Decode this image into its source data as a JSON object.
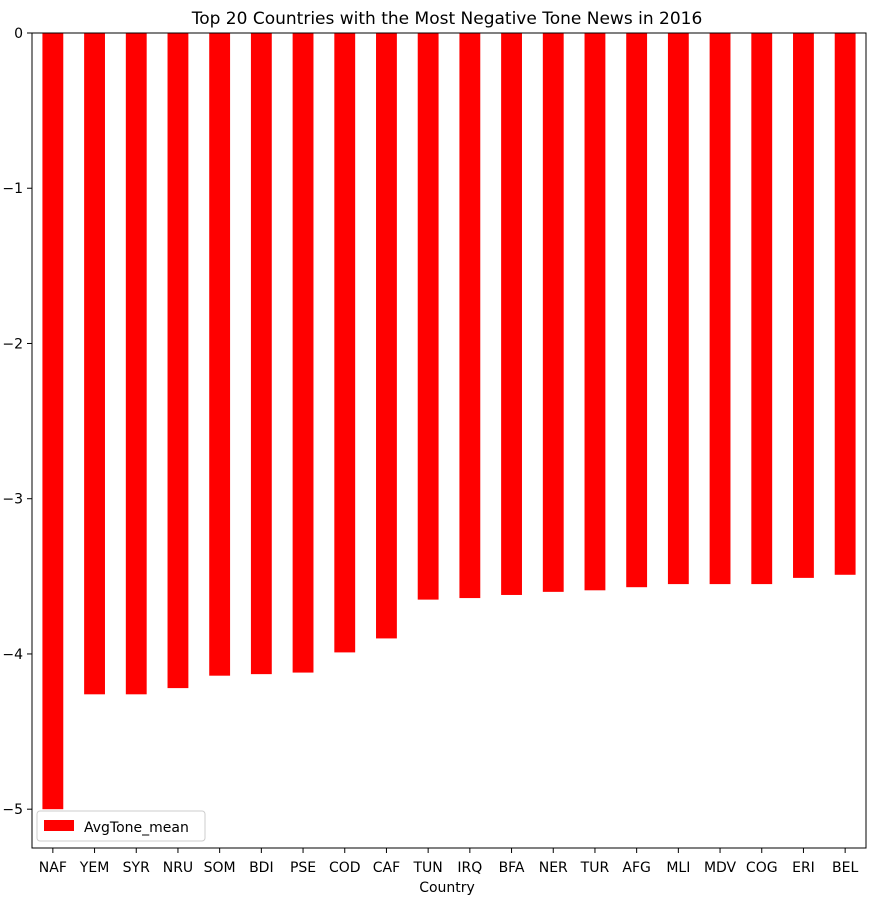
{
  "chart_data": {
    "type": "bar",
    "title": "Top 20 Countries with the Most Negative Tone News in 2016",
    "xlabel": "Country",
    "ylabel": "",
    "categories": [
      "NAF",
      "YEM",
      "SYR",
      "NRU",
      "SOM",
      "BDI",
      "PSE",
      "COD",
      "CAF",
      "TUN",
      "IRQ",
      "BFA",
      "NER",
      "TUR",
      "AFG",
      "MLI",
      "MDV",
      "COG",
      "ERI",
      "BEL"
    ],
    "series": [
      {
        "name": "AvgTone_mean",
        "color": "#ff0000",
        "values": [
          -5.0,
          -4.26,
          -4.26,
          -4.22,
          -4.14,
          -4.13,
          -4.12,
          -3.99,
          -3.9,
          -3.65,
          -3.64,
          -3.62,
          -3.6,
          -3.59,
          -3.57,
          -3.55,
          -3.55,
          -3.55,
          -3.51,
          -3.49
        ]
      }
    ],
    "ylim": [
      -5.25,
      0
    ],
    "yticks": [
      0,
      -1,
      -2,
      -3,
      -4,
      -5
    ],
    "ytick_labels": [
      "0",
      "−1",
      "−2",
      "−3",
      "−4",
      "−5"
    ],
    "grid": false,
    "legend_position": "lower-left"
  }
}
